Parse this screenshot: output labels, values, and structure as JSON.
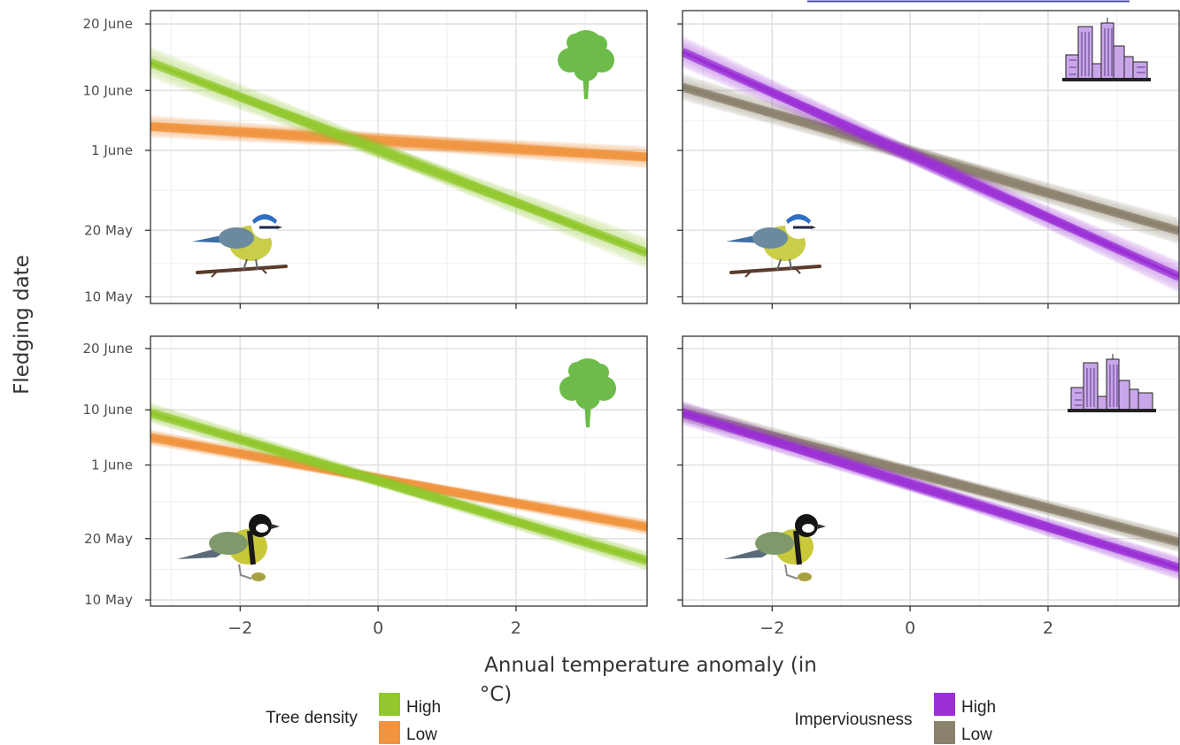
{
  "chart_data": {
    "type": "line",
    "ylabel": "Fledging date",
    "xlabel_line1": "Annual temperature anomaly (in",
    "xlabel_line2": "°C)",
    "xlim": [
      -3.3,
      3.9
    ],
    "ylim": [
      129,
      173
    ],
    "x_ticks": [
      {
        "value": -2,
        "label": "−2"
      },
      {
        "value": 0,
        "label": "0"
      },
      {
        "value": 2,
        "label": "2"
      }
    ],
    "y_ticks": [
      {
        "value": 130,
        "label": "10 May"
      },
      {
        "value": 140,
        "label": "20 May"
      },
      {
        "value": 152,
        "label": "1 June"
      },
      {
        "value": 161,
        "label": "10 June"
      },
      {
        "value": 171,
        "label": "20 June"
      }
    ],
    "panels": [
      {
        "id": "blue-tit-tree-density",
        "row": 0,
        "col": 0,
        "species_icon": "blue-tit-icon",
        "habitat_icon": "tree-icon",
        "series": [
          {
            "name": "Low",
            "color": "#F0943F",
            "x": [
              -3.3,
              3.9
            ],
            "y": [
              155.6,
              151.0
            ],
            "band": 2.2,
            "fan": 0.5
          },
          {
            "name": "High",
            "color": "#92C82D",
            "x": [
              -3.3,
              3.9
            ],
            "y": [
              165.2,
              136.6
            ],
            "band": 2.4,
            "fan": 1.1
          }
        ]
      },
      {
        "id": "blue-tit-imperviousness",
        "row": 0,
        "col": 1,
        "species_icon": "blue-tit-icon",
        "habitat_icon": "city-icon",
        "series": [
          {
            "name": "Low",
            "color": "#8B826D",
            "x": [
              -3.3,
              3.9
            ],
            "y": [
              161.5,
              139.9
            ],
            "band": 2.3,
            "fan": 0.8
          },
          {
            "name": "High",
            "color": "#9B30D6",
            "x": [
              -3.3,
              3.9
            ],
            "y": [
              166.8,
              133.0
            ],
            "band": 2.4,
            "fan": 1.1
          }
        ]
      },
      {
        "id": "great-tit-tree-density",
        "row": 1,
        "col": 0,
        "species_icon": "great-tit-icon",
        "habitat_icon": "tree-icon",
        "series": [
          {
            "name": "Low",
            "color": "#F0943F",
            "x": [
              -3.3,
              3.9
            ],
            "y": [
              156.5,
              141.9
            ],
            "band": 1.6,
            "fan": 0.4
          },
          {
            "name": "High",
            "color": "#92C82D",
            "x": [
              -3.3,
              3.9
            ],
            "y": [
              160.5,
              136.4
            ],
            "band": 1.8,
            "fan": 0.7
          }
        ]
      },
      {
        "id": "great-tit-imperviousness",
        "row": 1,
        "col": 1,
        "species_icon": "great-tit-icon",
        "habitat_icon": "city-icon",
        "series": [
          {
            "name": "Low",
            "color": "#8B826D",
            "x": [
              -3.3,
              3.9
            ],
            "y": [
              160.6,
              139.4
            ],
            "band": 1.9,
            "fan": 0.6
          },
          {
            "name": "High",
            "color": "#9B30D6",
            "x": [
              -3.3,
              3.9
            ],
            "y": [
              160.5,
              135.2
            ],
            "band": 2.2,
            "fan": 0.8
          }
        ]
      }
    ],
    "legends": [
      {
        "title": "Tree density",
        "entries": [
          {
            "name": "High",
            "color": "#92C82D"
          },
          {
            "name": "Low",
            "color": "#F0943F"
          }
        ]
      },
      {
        "title": "Imperviousness",
        "entries": [
          {
            "name": "High",
            "color": "#9B30D6"
          },
          {
            "name": "Low",
            "color": "#8B826D"
          }
        ]
      }
    ]
  }
}
